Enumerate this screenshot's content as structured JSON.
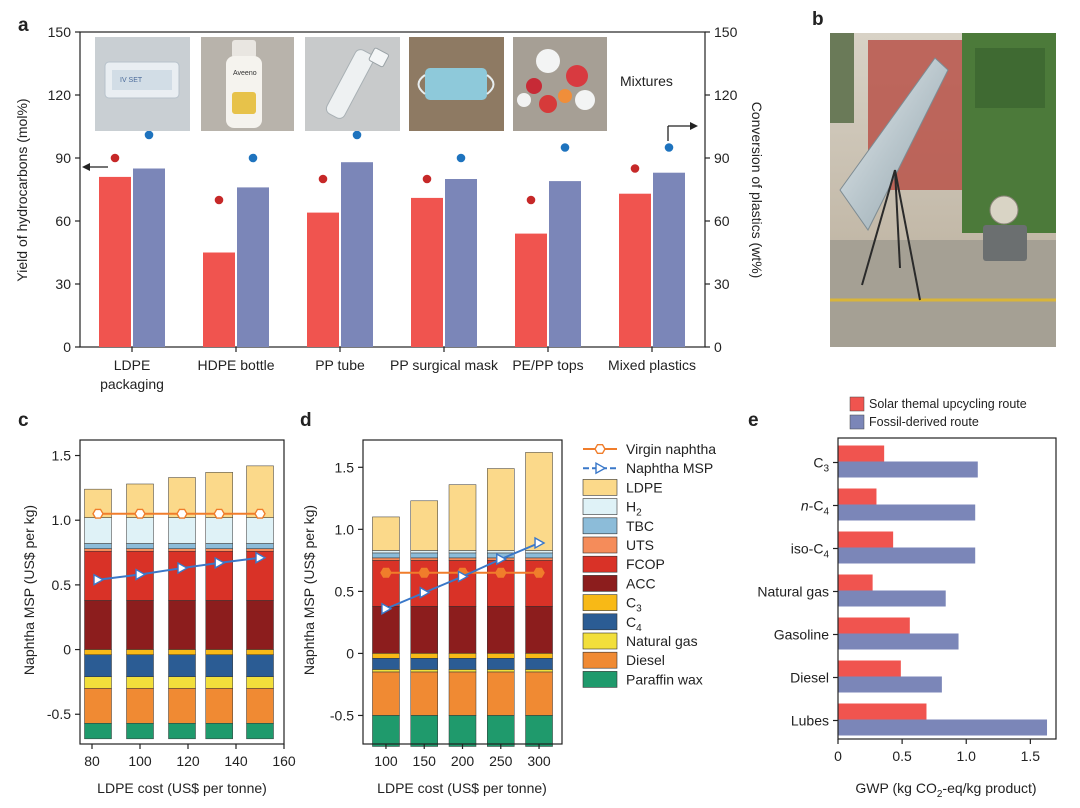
{
  "colors": {
    "red_bar": "#f0544f",
    "blue_bar": "#7b86b8",
    "red_dot": "#c62828",
    "blue_dot": "#1e73be",
    "orange_line": "#f07d2b",
    "blue_line": "#3a78c9",
    "legend": {
      "LDPE": "#fbd98a",
      "H2": "#dff2f7",
      "TBC": "#8cbcd9",
      "UTS": "#f58c5a",
      "FCOP": "#d93227",
      "ACC": "#8c1d1d",
      "C3": "#f8b916",
      "C4": "#2b5c94",
      "Natural gas": "#f2df3b",
      "Diesel": "#f08a33",
      "Paraffin wax": "#1f9a6c"
    }
  },
  "panels": {
    "a": "a",
    "b": "b",
    "c": "c",
    "d": "d",
    "e": "e"
  },
  "chart_data": [
    {
      "panel": "a",
      "type": "bar",
      "categories": [
        "LDPE packaging",
        "HDPE bottle",
        "PP tube",
        "PP surgical mask",
        "PE/PP tops",
        "Mixed plastics"
      ],
      "category_lines": [
        [
          "LDPE",
          "packaging"
        ],
        [
          "HDPE bottle"
        ],
        [
          "PP tube"
        ],
        [
          "PP surgical mask"
        ],
        [
          "PE/PP tops"
        ],
        [
          "Mixed plastics"
        ]
      ],
      "series": [
        {
          "name": "Yield of hydrocarbons",
          "axis": "left",
          "values": [
            81,
            45,
            64,
            71,
            54,
            73
          ]
        },
        {
          "name": "Conversion of plastics",
          "axis": "right",
          "values": [
            85,
            76,
            88,
            80,
            79,
            83
          ]
        }
      ],
      "dots": [
        {
          "name": "Yield marker",
          "values": [
            90,
            70,
            80,
            80,
            70,
            85
          ]
        },
        {
          "name": "Conversion marker",
          "values": [
            101,
            90,
            101,
            90,
            95,
            95
          ]
        }
      ],
      "ylabel_left": "Yield of hydrocarbons (mol%)",
      "ylabel_right": "Conversion of plastics (wt%)",
      "yticks": [
        0,
        30,
        60,
        90,
        120,
        150
      ],
      "ylim": [
        0,
        150
      ],
      "annotation": "Mixtures"
    },
    {
      "panel": "c",
      "type": "bar",
      "stacked": true,
      "x": [
        82.5,
        100,
        117.5,
        133,
        150
      ],
      "xticks": [
        80,
        100,
        120,
        140,
        160
      ],
      "xlim": [
        75,
        160
      ],
      "xlabel": "LDPE cost (US$ per tonne)",
      "ylabel": "Naphtha MSP (US$ per kg)",
      "yticks": [
        -0.5,
        0,
        0.5,
        1.0,
        1.5
      ],
      "ytick_labels": [
        "-0.5",
        "0",
        "0.5",
        "1.0",
        "1.5"
      ],
      "ylim": [
        -0.73,
        1.62
      ],
      "positive_stack": [
        {
          "name": "ACC",
          "values": [
            0.38,
            0.38,
            0.38,
            0.38,
            0.38
          ]
        },
        {
          "name": "FCOP",
          "values": [
            0.38,
            0.38,
            0.38,
            0.38,
            0.38
          ]
        },
        {
          "name": "UTS",
          "values": [
            0.02,
            0.02,
            0.02,
            0.02,
            0.02
          ]
        },
        {
          "name": "TBC",
          "values": [
            0.04,
            0.04,
            0.04,
            0.04,
            0.04
          ]
        },
        {
          "name": "H2",
          "values": [
            0.2,
            0.2,
            0.2,
            0.2,
            0.2
          ]
        },
        {
          "name": "LDPE",
          "values": [
            0.22,
            0.26,
            0.31,
            0.35,
            0.4
          ]
        }
      ],
      "negative_stack": [
        {
          "name": "C3",
          "values": [
            -0.04,
            -0.04,
            -0.04,
            -0.04,
            -0.04
          ]
        },
        {
          "name": "C4",
          "values": [
            -0.17,
            -0.17,
            -0.17,
            -0.17,
            -0.17
          ]
        },
        {
          "name": "Natural gas",
          "values": [
            -0.09,
            -0.09,
            -0.09,
            -0.09,
            -0.09
          ]
        },
        {
          "name": "Diesel",
          "values": [
            -0.27,
            -0.27,
            -0.27,
            -0.27,
            -0.27
          ]
        },
        {
          "name": "Paraffin wax",
          "values": [
            -0.12,
            -0.12,
            -0.12,
            -0.12,
            -0.12
          ]
        }
      ],
      "lines": [
        {
          "name": "Virgin naphtha",
          "values": [
            1.05,
            1.05,
            1.05,
            1.05,
            1.05
          ]
        },
        {
          "name": "Naphtha MSP",
          "values": [
            0.54,
            0.58,
            0.63,
            0.67,
            0.71
          ]
        }
      ]
    },
    {
      "panel": "d",
      "type": "bar",
      "stacked": true,
      "x": [
        100,
        150,
        200,
        250,
        300
      ],
      "xticks": [
        100,
        150,
        200,
        250,
        300
      ],
      "xlim": [
        70,
        330
      ],
      "xlabel": "LDPE cost (US$ per tonne)",
      "ylabel": "Naphtha MSP (US$ per kg)",
      "yticks": [
        -0.5,
        0,
        0.5,
        1.0,
        1.5
      ],
      "ytick_labels": [
        "-0.5",
        "0",
        "0.5",
        "1.0",
        "1.5"
      ],
      "ylim": [
        -0.73,
        1.72
      ],
      "positive_stack": [
        {
          "name": "ACC",
          "values": [
            0.38,
            0.38,
            0.38,
            0.38,
            0.38
          ]
        },
        {
          "name": "FCOP",
          "values": [
            0.37,
            0.37,
            0.37,
            0.37,
            0.37
          ]
        },
        {
          "name": "UTS",
          "values": [
            0.02,
            0.02,
            0.02,
            0.02,
            0.02
          ]
        },
        {
          "name": "TBC",
          "values": [
            0.04,
            0.04,
            0.04,
            0.04,
            0.04
          ]
        },
        {
          "name": "H2",
          "values": [
            0.02,
            0.02,
            0.02,
            0.02,
            0.02
          ]
        },
        {
          "name": "LDPE",
          "values": [
            0.27,
            0.4,
            0.53,
            0.66,
            0.79
          ]
        }
      ],
      "negative_stack": [
        {
          "name": "C3",
          "values": [
            -0.04,
            -0.04,
            -0.04,
            -0.04,
            -0.04
          ]
        },
        {
          "name": "C4",
          "values": [
            -0.09,
            -0.09,
            -0.09,
            -0.09,
            -0.09
          ]
        },
        {
          "name": "Natural gas",
          "values": [
            -0.02,
            -0.02,
            -0.02,
            -0.02,
            -0.02
          ]
        },
        {
          "name": "Diesel",
          "values": [
            -0.35,
            -0.35,
            -0.35,
            -0.35,
            -0.35
          ]
        },
        {
          "name": "Paraffin wax",
          "values": [
            -0.25,
            -0.25,
            -0.25,
            -0.25,
            -0.25
          ]
        }
      ],
      "lines": [
        {
          "name": "Virgin naphtha",
          "values": [
            0.65,
            0.65,
            0.65,
            0.65,
            0.65
          ]
        },
        {
          "name": "Naphtha MSP",
          "values": [
            0.36,
            0.49,
            0.62,
            0.76,
            0.89
          ]
        }
      ]
    },
    {
      "panel": "e",
      "type": "bar",
      "orientation": "horizontal",
      "categories": [
        "C3",
        "n-C4",
        "iso-C4",
        "Natural gas",
        "Gasoline",
        "Diesel",
        "Lubes"
      ],
      "series": [
        {
          "name": "Solar themal upcycling route",
          "values": [
            0.36,
            0.3,
            0.43,
            0.27,
            0.56,
            0.49,
            0.69
          ]
        },
        {
          "name": "Fossil-derived route",
          "values": [
            1.09,
            1.07,
            1.07,
            0.84,
            0.94,
            0.81,
            1.63
          ]
        }
      ],
      "xticks": [
        0,
        0.5,
        1.0,
        1.5
      ],
      "xtick_labels": [
        "0",
        "0.5",
        "1.0",
        "1.5"
      ],
      "xlim": [
        0,
        1.7
      ],
      "xlabel": "GWP (kg CO2-eq/kg product)"
    }
  ],
  "legend_cd": {
    "items": [
      "Virgin naphtha",
      "Naphtha MSP",
      "LDPE",
      "H2",
      "TBC",
      "UTS",
      "FCOP",
      "ACC",
      "C3",
      "C4",
      "Natural gas",
      "Diesel",
      "Paraffin wax"
    ]
  },
  "photos": {
    "panel_a": [
      "LDPE packaging photo",
      "HDPE bottle photo",
      "PP tube photo",
      "PP surgical mask photo",
      "PE/PP tops photo"
    ],
    "bottle_brand": "Aveeno",
    "panel_b": "Solar concentrator setup photo"
  }
}
